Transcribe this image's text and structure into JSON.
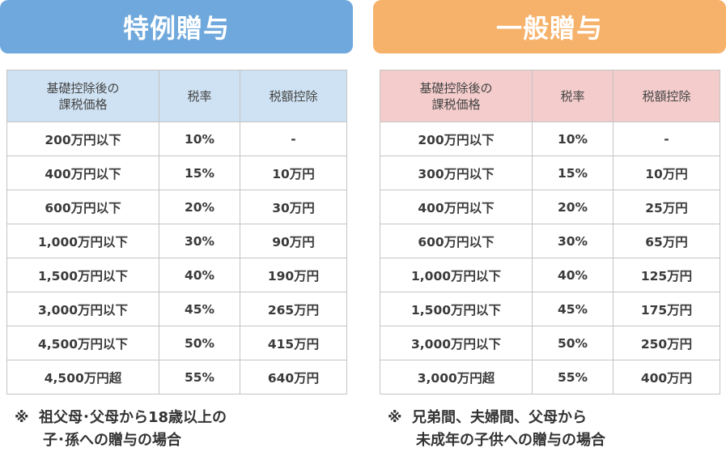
{
  "left": {
    "title": "特例贈与",
    "header": {
      "col1_line1": "基礎控除後の",
      "col1_line2": "課税価格",
      "col2": "税率",
      "col3": "税額控除"
    },
    "rows": [
      [
        "200万円以下",
        "10%",
        "-"
      ],
      [
        "400万円以下",
        "15%",
        "10万円"
      ],
      [
        "600万円以下",
        "20%",
        "30万円"
      ],
      [
        "1,000万円以下",
        "30%",
        "90万円"
      ],
      [
        "1,500万円以下",
        "40%",
        "190万円"
      ],
      [
        "3,000万円以下",
        "45%",
        "265万円"
      ],
      [
        "4,500万円以下",
        "50%",
        "415万円"
      ],
      [
        "4,500万円超",
        "55%",
        "640万円"
      ]
    ],
    "note": {
      "mark": "※",
      "line1": "祖父母･父母から18歳以上の",
      "line2": "子･孫への贈与の場合"
    }
  },
  "right": {
    "title": "一般贈与",
    "header": {
      "col1_line1": "基礎控除後の",
      "col1_line2": "課税価格",
      "col2": "税率",
      "col3": "税額控除"
    },
    "rows": [
      [
        "200万円以下",
        "10%",
        "-"
      ],
      [
        "300万円以下",
        "15%",
        "10万円"
      ],
      [
        "400万円以下",
        "20%",
        "25万円"
      ],
      [
        "600万円以下",
        "30%",
        "65万円"
      ],
      [
        "1,000万円以下",
        "40%",
        "125万円"
      ],
      [
        "1,500万円以下",
        "45%",
        "175万円"
      ],
      [
        "3,000万円以下",
        "50%",
        "250万円"
      ],
      [
        "3,000万円超",
        "55%",
        "400万円"
      ]
    ],
    "note": {
      "mark": "※",
      "line1": "兄弟間、夫婦間、父母から",
      "line2": "未成年の子供への贈与の場合"
    }
  },
  "colors": {
    "left_banner": "#6fa8dc",
    "right_banner": "#f6b26b",
    "left_header": "#cfe2f3",
    "right_header": "#f4cccc"
  }
}
